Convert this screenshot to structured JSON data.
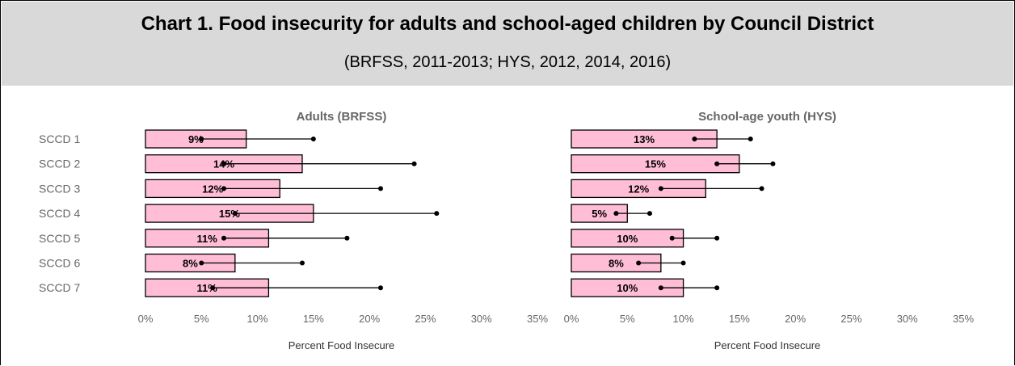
{
  "header": {
    "title": "Chart 1. Food insecurity for adults and school-aged children by Council District",
    "subtitle": "(BRFSS, 2011-2013; HYS, 2012, 2014, 2016)"
  },
  "colors": {
    "bar_fill": "#ffbdd6",
    "bar_stroke": "#000000",
    "axis_text": "#666666",
    "header_bg": "#d9d9d9"
  },
  "chart_data": [
    {
      "type": "bar",
      "orientation": "horizontal",
      "title": "Adults (BRFSS)",
      "xlabel": "Percent Food Insecure",
      "xlim": [
        0,
        35
      ],
      "xticks": [
        "0%",
        "5%",
        "10%",
        "15%",
        "20%",
        "25%",
        "30%",
        "35%"
      ],
      "categories": [
        "SCCD 1",
        "SCCD 2",
        "SCCD 3",
        "SCCD 4",
        "SCCD 5",
        "SCCD 6",
        "SCCD 7"
      ],
      "values": [
        9,
        14,
        12,
        15,
        11,
        8,
        11
      ],
      "value_labels": [
        "9%",
        "14%",
        "12%",
        "15%",
        "11%",
        "8%",
        "11%"
      ],
      "ci_lower": [
        5,
        7,
        7,
        8,
        7,
        5,
        6
      ],
      "ci_upper": [
        15,
        24,
        21,
        26,
        18,
        14,
        21
      ]
    },
    {
      "type": "bar",
      "orientation": "horizontal",
      "title": "School-age youth (HYS)",
      "xlabel": "Percent Food Insecure",
      "xlim": [
        0,
        35
      ],
      "xticks": [
        "0%",
        "5%",
        "10%",
        "15%",
        "20%",
        "25%",
        "30%",
        "35%"
      ],
      "categories": [
        "SCCD 1",
        "SCCD 2",
        "SCCD 3",
        "SCCD 4",
        "SCCD 5",
        "SCCD 6",
        "SCCD 7"
      ],
      "values": [
        13,
        15,
        12,
        5,
        10,
        8,
        10
      ],
      "value_labels": [
        "13%",
        "15%",
        "12%",
        "5%",
        "10%",
        "8%",
        "10%"
      ],
      "ci_lower": [
        11,
        13,
        8,
        4,
        9,
        6,
        8
      ],
      "ci_upper": [
        16,
        18,
        17,
        7,
        13,
        10,
        13
      ]
    }
  ]
}
